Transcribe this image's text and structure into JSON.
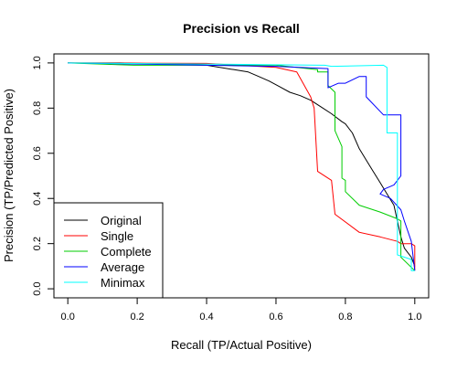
{
  "chart_data": {
    "type": "line",
    "title": "Precision vs Recall",
    "xlabel": "Recall (TP/Actual Positive)",
    "ylabel": "Precision (TP/Predicted Positive)",
    "xlim": [
      -0.04,
      1.04
    ],
    "ylim": [
      -0.04,
      1.04
    ],
    "xticks": [
      0.0,
      0.2,
      0.4,
      0.6,
      0.8,
      1.0
    ],
    "yticks": [
      0.0,
      0.2,
      0.4,
      0.6,
      0.8,
      1.0
    ],
    "xtick_labels": [
      "0.0",
      "0.2",
      "0.4",
      "0.6",
      "0.8",
      "1.0"
    ],
    "ytick_labels": [
      "0.0",
      "0.2",
      "0.4",
      "0.6",
      "0.8",
      "1.0"
    ],
    "grid": false,
    "legend_position": "bottom-left",
    "series": [
      {
        "name": "Original",
        "color": "#000000",
        "points": [
          [
            0.0,
            1.0
          ],
          [
            0.15,
            1.0
          ],
          [
            0.3,
            0.995
          ],
          [
            0.4,
            0.99
          ],
          [
            0.48,
            0.97
          ],
          [
            0.52,
            0.96
          ],
          [
            0.55,
            0.94
          ],
          [
            0.58,
            0.92
          ],
          [
            0.61,
            0.895
          ],
          [
            0.64,
            0.87
          ],
          [
            0.67,
            0.855
          ],
          [
            0.7,
            0.835
          ],
          [
            0.73,
            0.805
          ],
          [
            0.76,
            0.775
          ],
          [
            0.79,
            0.74
          ],
          [
            0.8,
            0.73
          ],
          [
            0.82,
            0.69
          ],
          [
            0.84,
            0.62
          ],
          [
            0.86,
            0.57
          ],
          [
            0.88,
            0.52
          ],
          [
            0.9,
            0.47
          ],
          [
            0.92,
            0.42
          ],
          [
            0.94,
            0.37
          ],
          [
            0.95,
            0.3
          ],
          [
            0.96,
            0.23
          ],
          [
            0.97,
            0.18
          ],
          [
            0.98,
            0.16
          ],
          [
            0.99,
            0.14
          ],
          [
            1.0,
            0.1
          ]
        ]
      },
      {
        "name": "Single",
        "color": "#ff0000",
        "points": [
          [
            0.0,
            1.0
          ],
          [
            0.4,
            0.998
          ],
          [
            0.6,
            0.98
          ],
          [
            0.66,
            0.96
          ],
          [
            0.7,
            0.85
          ],
          [
            0.71,
            0.8
          ],
          [
            0.72,
            0.52
          ],
          [
            0.76,
            0.48
          ],
          [
            0.77,
            0.33
          ],
          [
            0.84,
            0.25
          ],
          [
            0.9,
            0.23
          ],
          [
            0.95,
            0.21
          ],
          [
            0.96,
            0.2
          ],
          [
            0.99,
            0.2
          ],
          [
            1.0,
            0.19
          ],
          [
            1.0,
            0.08
          ]
        ]
      },
      {
        "name": "Complete",
        "color": "#00cd00",
        "points": [
          [
            0.0,
            1.0
          ],
          [
            0.19,
            0.99
          ],
          [
            0.4,
            0.99
          ],
          [
            0.6,
            0.99
          ],
          [
            0.72,
            0.97
          ],
          [
            0.72,
            0.96
          ],
          [
            0.75,
            0.96
          ],
          [
            0.75,
            0.9
          ],
          [
            0.77,
            0.87
          ],
          [
            0.77,
            0.7
          ],
          [
            0.79,
            0.63
          ],
          [
            0.79,
            0.49
          ],
          [
            0.8,
            0.48
          ],
          [
            0.8,
            0.43
          ],
          [
            0.84,
            0.37
          ],
          [
            0.9,
            0.34
          ],
          [
            0.95,
            0.31
          ],
          [
            0.96,
            0.3
          ],
          [
            0.96,
            0.14
          ],
          [
            1.0,
            0.08
          ]
        ]
      },
      {
        "name": "Average",
        "color": "#0000ff",
        "points": [
          [
            0.0,
            1.0
          ],
          [
            0.4,
            0.99
          ],
          [
            0.6,
            0.985
          ],
          [
            0.75,
            0.975
          ],
          [
            0.75,
            0.89
          ],
          [
            0.78,
            0.91
          ],
          [
            0.8,
            0.91
          ],
          [
            0.84,
            0.94
          ],
          [
            0.86,
            0.94
          ],
          [
            0.86,
            0.85
          ],
          [
            0.91,
            0.77
          ],
          [
            0.96,
            0.77
          ],
          [
            0.96,
            0.5
          ],
          [
            0.94,
            0.46
          ],
          [
            0.91,
            0.44
          ],
          [
            0.9,
            0.42
          ],
          [
            0.93,
            0.4
          ],
          [
            0.96,
            0.35
          ],
          [
            0.97,
            0.3
          ],
          [
            0.99,
            0.21
          ],
          [
            1.0,
            0.08
          ]
        ]
      },
      {
        "name": "Minimax",
        "color": "#00ffff",
        "points": [
          [
            0.0,
            1.0
          ],
          [
            0.4,
            0.995
          ],
          [
            0.73,
            0.99
          ],
          [
            0.74,
            0.99
          ],
          [
            0.76,
            0.985
          ],
          [
            0.91,
            0.99
          ],
          [
            0.92,
            0.98
          ],
          [
            0.92,
            0.69
          ],
          [
            0.95,
            0.69
          ],
          [
            0.95,
            0.64
          ],
          [
            0.95,
            0.15
          ],
          [
            0.99,
            0.13
          ],
          [
            0.99,
            0.08
          ],
          [
            1.0,
            0.08
          ]
        ]
      }
    ]
  }
}
